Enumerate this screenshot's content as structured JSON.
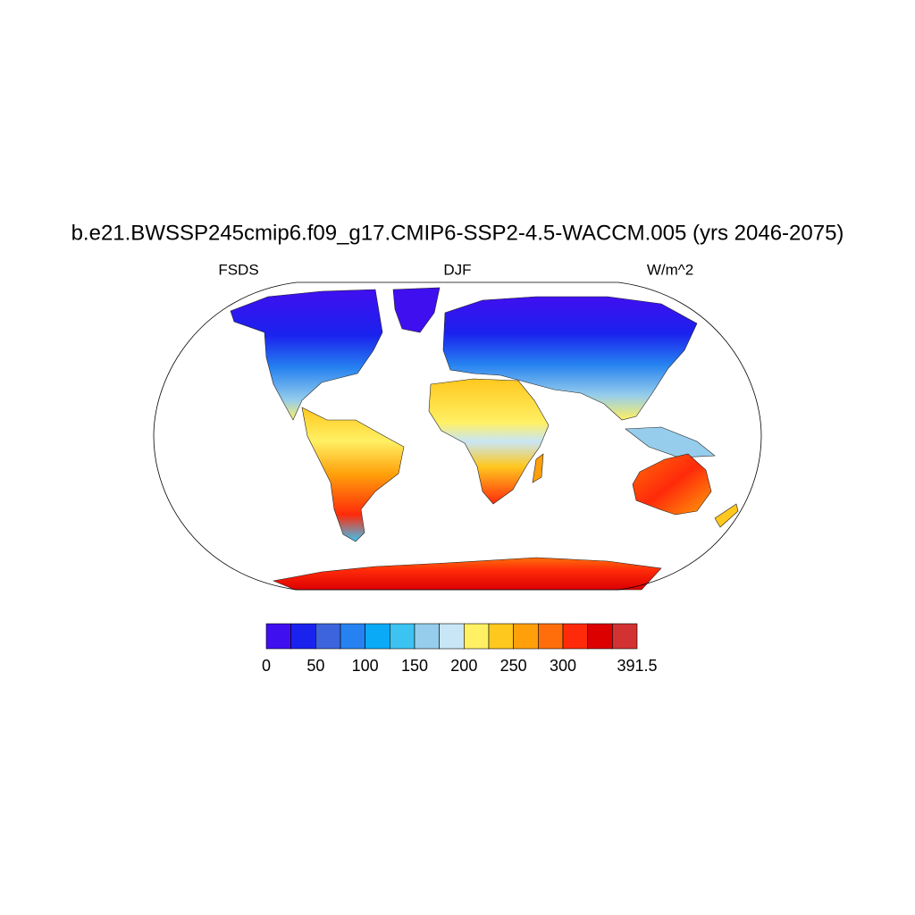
{
  "map": {
    "title": "b.e21.BWSSP245cmip6.f09_g17.CMIP6-SSP2-4.5-WACCM.005 (yrs 2046-2075)",
    "left_label": "FSDS",
    "center_label": "DJF",
    "right_label": "W/m^2",
    "colorbar": {
      "levels": [
        0,
        25,
        50,
        75,
        100,
        125,
        150,
        175,
        200,
        225,
        250,
        275,
        300,
        325,
        350,
        391.5
      ],
      "colors": [
        "#400ff0",
        "#1a22ee",
        "#3d64dc",
        "#2682f0",
        "#0aaaf6",
        "#3cc3f2",
        "#96cdec",
        "#c8e6f6",
        "#fff064",
        "#ffc81e",
        "#ffa00a",
        "#ff6e0a",
        "#ff2a0a",
        "#dc0000",
        "#d23232"
      ],
      "ticks": [
        0,
        50,
        100,
        150,
        200,
        250,
        300,
        391.5
      ]
    }
  }
}
